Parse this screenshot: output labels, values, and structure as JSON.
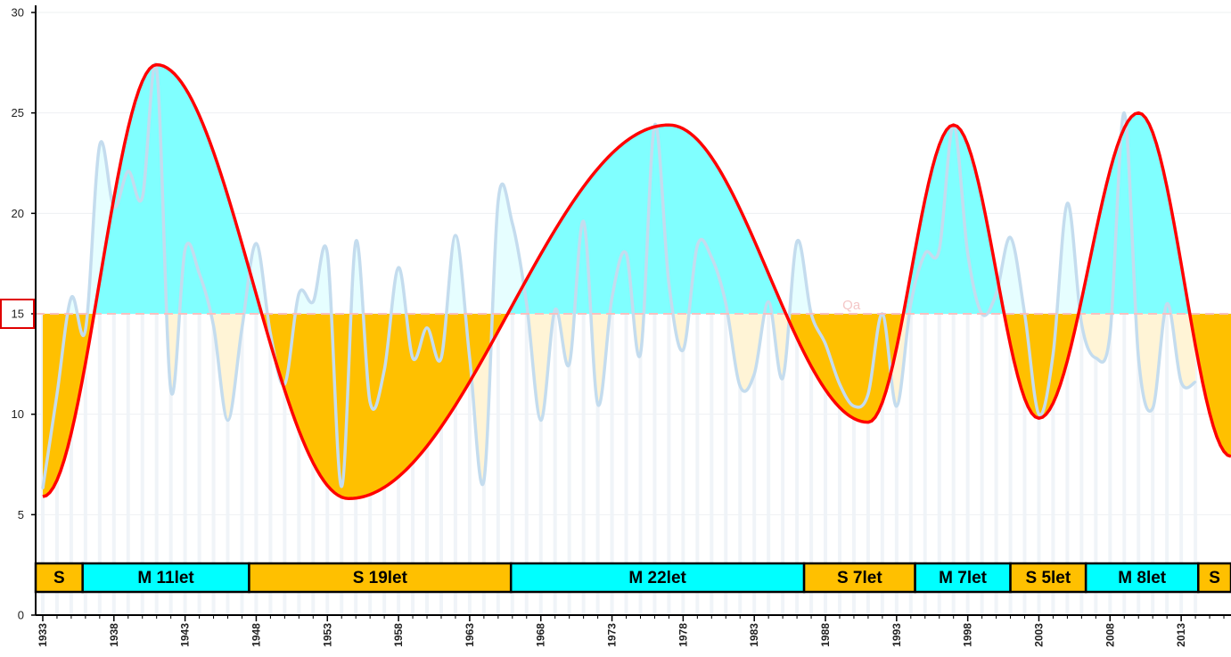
{
  "colors": {
    "wet": "#80ffff",
    "dry": "#ffc000",
    "wet_band": "#00ffff",
    "dry_band": "#ffc000",
    "light_wet": "#e6feff",
    "light_dry": "#fff4d6",
    "curve": "#ff0000",
    "annual": "#c4dcee",
    "mean": "#f8c0c0",
    "highlight": "#e00000"
  },
  "chart_data": {
    "type": "area",
    "title": "",
    "xlabel": "",
    "ylabel": "",
    "xlim": [
      1932.5,
      2016.5
    ],
    "ylim": [
      0,
      30
    ],
    "yticks": [
      "0",
      "5",
      "10",
      "15",
      "20",
      "25",
      "30"
    ],
    "xticks": [
      "1933",
      "1938",
      "1943",
      "1948",
      "1953",
      "1958",
      "1963",
      "1968",
      "1973",
      "1978",
      "1983",
      "1988",
      "1993",
      "1998",
      "2003",
      "2008",
      "2013"
    ],
    "highlighted_tick": "15",
    "grid": "horizontal",
    "mean_line": {
      "value": 15,
      "label": "Qa"
    },
    "annual_series": {
      "x": [
        1933,
        1934,
        1935,
        1936,
        1937,
        1938,
        1939,
        1940,
        1941,
        1942,
        1943,
        1944,
        1945,
        1946,
        1947,
        1948,
        1949,
        1950,
        1951,
        1952,
        1953,
        1954,
        1955,
        1956,
        1957,
        1958,
        1959,
        1960,
        1961,
        1962,
        1963,
        1964,
        1965,
        1966,
        1967,
        1968,
        1969,
        1970,
        1971,
        1972,
        1973,
        1974,
        1975,
        1976,
        1977,
        1978,
        1979,
        1980,
        1981,
        1982,
        1983,
        1984,
        1985,
        1986,
        1987,
        1988,
        1989,
        1990,
        1991,
        1992,
        1993,
        1994,
        1995,
        1996,
        1997,
        1998,
        1999,
        2000,
        2001,
        2002,
        2003,
        2004,
        2005,
        2006,
        2007,
        2008,
        2009,
        2010,
        2011,
        2012,
        2013,
        2014
      ],
      "values": [
        6.3,
        11.0,
        15.8,
        14.2,
        23.4,
        20.3,
        22.1,
        20.8,
        27.2,
        11.2,
        18.2,
        17.0,
        14.4,
        9.7,
        14.3,
        18.5,
        14.0,
        11.5,
        16.0,
        15.6,
        18.0,
        6.4,
        18.6,
        10.6,
        12.2,
        17.3,
        12.8,
        14.3,
        12.8,
        18.9,
        12.8,
        6.7,
        20.6,
        19.5,
        15.5,
        9.7,
        15.2,
        12.5,
        19.6,
        10.5,
        15.8,
        18.0,
        13.0,
        24.4,
        16.5,
        13.2,
        18.4,
        17.8,
        15.5,
        11.4,
        12.0,
        15.6,
        11.8,
        18.6,
        15.0,
        13.5,
        11.5,
        10.4,
        11.0,
        15.0,
        10.4,
        15.5,
        18.0,
        18.2,
        24.4,
        18.0,
        15.0,
        16.0,
        18.8,
        15.0,
        10.0,
        13.0,
        20.5,
        14.5,
        12.8,
        14.0,
        25.0,
        12.8,
        10.3,
        15.5,
        11.6,
        11.6
      ]
    },
    "smoothed_curve": {
      "x": [
        1933,
        1941,
        1954.5,
        1977,
        1991,
        1997,
        2003,
        2010,
        2016.5
      ],
      "values": [
        5.9,
        27.4,
        5.8,
        24.4,
        9.6,
        24.4,
        9.8,
        25.0,
        7.9
      ]
    },
    "phases": [
      {
        "type": "S",
        "text": "S",
        "start": 1932.5,
        "end": 1935.8
      },
      {
        "type": "M",
        "text": "M   11let",
        "start": 1935.8,
        "end": 1947.5
      },
      {
        "type": "S",
        "text": "S   19let",
        "start": 1947.5,
        "end": 1965.9
      },
      {
        "type": "M",
        "text": "M   22let",
        "start": 1965.9,
        "end": 1986.5
      },
      {
        "type": "S",
        "text": "S   7let",
        "start": 1986.5,
        "end": 1994.3
      },
      {
        "type": "M",
        "text": "M   7let",
        "start": 1994.3,
        "end": 2001.0
      },
      {
        "type": "S",
        "text": "S 5let",
        "start": 2001.0,
        "end": 2006.3
      },
      {
        "type": "M",
        "text": "M   8let",
        "start": 2006.3,
        "end": 2014.2
      },
      {
        "type": "S",
        "text": "S",
        "start": 2014.2,
        "end": 2016.5
      }
    ]
  }
}
